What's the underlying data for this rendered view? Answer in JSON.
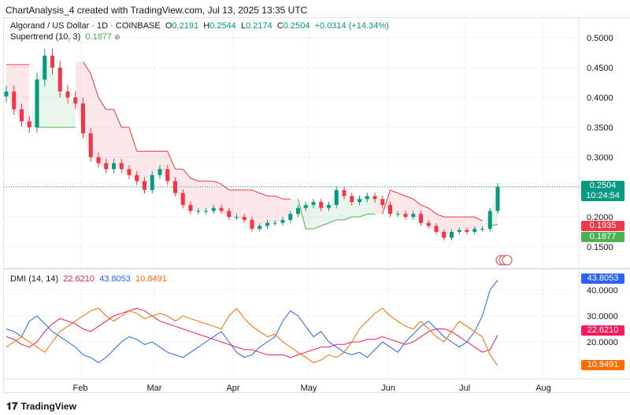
{
  "credit": "ChartAnalysis_4 created with TradingView.com, Jul 13, 2025 13:35 UTC",
  "legend": {
    "symbol": "Algorand / US Dollar · 1D · COINBASE",
    "o_label": "O",
    "o": "0.2191",
    "h_label": "H",
    "h": "0.2544",
    "l_label": "L",
    "l": "0.2174",
    "c_label": "C",
    "c": "0.2504",
    "change": "+0.0314 (+14.34%)",
    "supertrend_label": "Supertrend (10, 3)",
    "supertrend": "0.1877",
    "dmi_label": "DMI (14, 14)",
    "adx": "22.6210",
    "plus_di": "43.8053",
    "minus_di": "10.8491"
  },
  "footer": {
    "brand": "TradingView"
  },
  "colors": {
    "up": "#089981",
    "down": "#f23645",
    "st_up": "#4caf50",
    "st_down": "#f23645",
    "adx": "#f7195a",
    "plus_di": "#2962ff",
    "minus_di": "#ff6d00"
  },
  "chart_data": [
    {
      "type": "candlestick",
      "title": "Algorand / US Dollar · 1D · COINBASE",
      "ylim": [
        0.13,
        0.52
      ],
      "y_ticks": [
        "0.5000",
        "0.4500",
        "0.4000",
        "0.3500",
        "0.3000",
        "0.2000",
        "0.1500"
      ],
      "x_ticks": [
        "Feb",
        "Mar",
        "Apr",
        "May",
        "Jun",
        "Jul",
        "Aug"
      ],
      "last_price": "0.2504",
      "countdown": "10:24:54",
      "st_red_label": "0.1935",
      "st_green_label": "0.1877",
      "close": [
        0.41,
        0.38,
        0.36,
        0.35,
        0.43,
        0.47,
        0.45,
        0.41,
        0.4,
        0.39,
        0.34,
        0.3,
        0.29,
        0.28,
        0.29,
        0.28,
        0.27,
        0.26,
        0.245,
        0.27,
        0.28,
        0.26,
        0.24,
        0.22,
        0.21,
        0.21,
        0.21,
        0.215,
        0.21,
        0.2,
        0.2,
        0.195,
        0.18,
        0.185,
        0.19,
        0.19,
        0.195,
        0.205,
        0.215,
        0.22,
        0.225,
        0.215,
        0.22,
        0.245,
        0.235,
        0.225,
        0.23,
        0.235,
        0.23,
        0.22,
        0.205,
        0.205,
        0.2,
        0.205,
        0.19,
        0.185,
        0.175,
        0.165,
        0.175,
        0.178,
        0.175,
        0.18,
        0.18,
        0.21,
        0.2504
      ],
      "supertrend": [
        0.455,
        0.455,
        0.455,
        0.455,
        0.35,
        0.35,
        0.35,
        0.35,
        0.35,
        0.35,
        0.46,
        0.44,
        0.4,
        0.38,
        0.38,
        0.35,
        0.35,
        0.31,
        0.31,
        0.31,
        0.31,
        0.31,
        0.28,
        0.28,
        0.265,
        0.26,
        0.26,
        0.26,
        0.255,
        0.245,
        0.245,
        0.245,
        0.245,
        0.24,
        0.235,
        0.235,
        0.23,
        0.23,
        0.23,
        0.18,
        0.18,
        0.185,
        0.19,
        0.195,
        0.195,
        0.2,
        0.2,
        0.205,
        0.205,
        0.205,
        0.245,
        0.24,
        0.235,
        0.23,
        0.22,
        0.215,
        0.205,
        0.2,
        0.2,
        0.2,
        0.2,
        0.2,
        0.1935,
        0.185,
        0.1877
      ],
      "supertrend_dir": "ddddUUUUUUddddddddddddddddddddddddddddUUUUUUUUUUUddddddddddddddUU"
    },
    {
      "type": "line",
      "title": "DMI (14, 14)",
      "ylim": [
        8,
        46
      ],
      "y_ticks": [
        "40.0000",
        "30.0000",
        "20.0000"
      ],
      "series": [
        {
          "name": "ADX",
          "values": [
            22,
            21,
            19,
            18,
            20,
            24,
            27,
            29,
            28,
            27,
            25,
            24,
            26,
            28,
            30,
            31,
            32,
            33,
            32,
            30,
            28,
            27,
            26,
            25,
            24,
            23,
            22,
            21,
            20,
            19,
            18,
            17,
            17,
            16,
            15,
            15,
            15,
            14,
            15,
            16,
            17,
            18,
            18,
            19,
            19,
            20,
            20,
            21,
            21,
            22,
            21,
            20,
            19,
            20,
            22,
            24,
            25,
            25,
            24,
            22,
            20,
            18,
            16,
            17,
            22.621
          ]
        },
        {
          "name": "+DI",
          "values": [
            25,
            24,
            22,
            28,
            30,
            27,
            24,
            22,
            20,
            18,
            15,
            14,
            12,
            14,
            17,
            20,
            22,
            21,
            19,
            20,
            18,
            16,
            15,
            14,
            16,
            18,
            20,
            22,
            24,
            20,
            16,
            14,
            15,
            18,
            20,
            22,
            28,
            32,
            30,
            26,
            22,
            24,
            20,
            18,
            16,
            15,
            16,
            14,
            17,
            20,
            18,
            16,
            20,
            23,
            26,
            28,
            25,
            22,
            20,
            18,
            20,
            24,
            30,
            40,
            43.8053
          ]
        },
        {
          "name": "-DI",
          "values": [
            18,
            20,
            22,
            20,
            18,
            16,
            20,
            24,
            26,
            28,
            30,
            32,
            33,
            30,
            28,
            30,
            32,
            31,
            29,
            30,
            31,
            30,
            28,
            30,
            29,
            28,
            27,
            26,
            25,
            30,
            33,
            29,
            26,
            24,
            22,
            23,
            20,
            18,
            16,
            14,
            12,
            13,
            15,
            14,
            16,
            20,
            25,
            28,
            31,
            33,
            30,
            28,
            26,
            25,
            28,
            25,
            22,
            20,
            24,
            28,
            26,
            24,
            22,
            15,
            10.8491
          ]
        }
      ]
    }
  ]
}
